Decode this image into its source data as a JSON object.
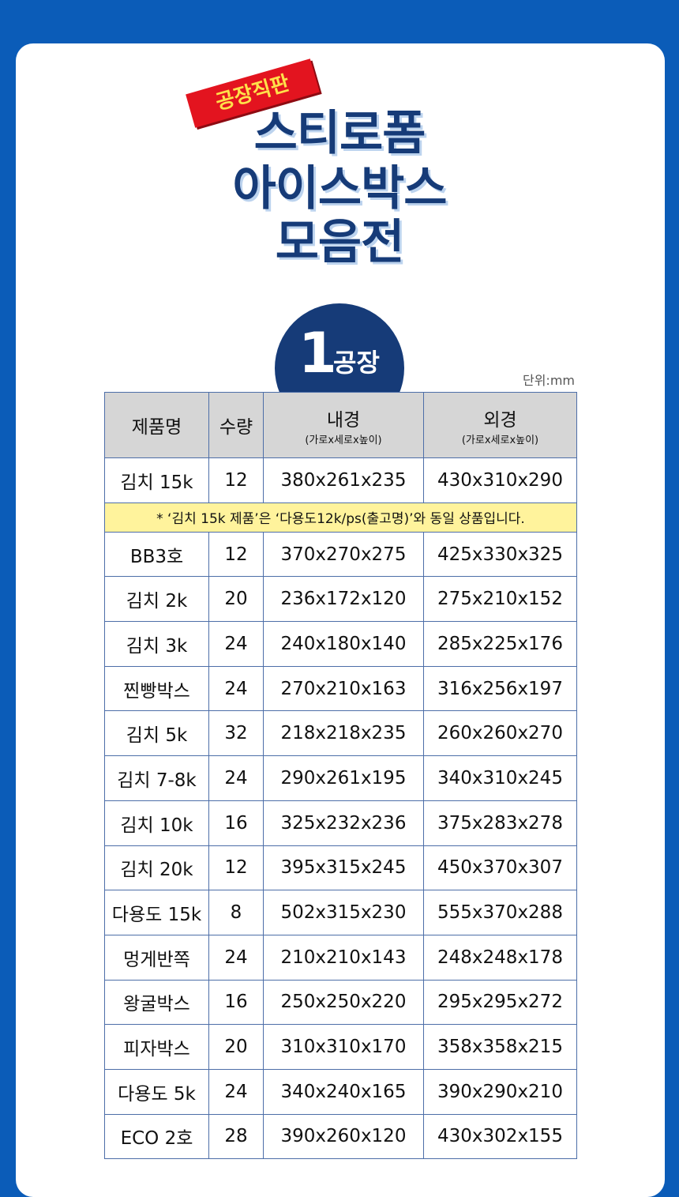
{
  "header": {
    "badge": "공장직판",
    "title": [
      "스티로폼",
      "아이스박스",
      "모음전"
    ]
  },
  "factory": {
    "number": "1",
    "label": "공장"
  },
  "unit": "단위:mm",
  "table": {
    "columns": [
      {
        "label": "제품명"
      },
      {
        "label": "수량"
      },
      {
        "label": "내경",
        "sub": "(가로x세로x높이)"
      },
      {
        "label": "외경",
        "sub": "(가로x세로x높이)"
      }
    ],
    "rows": [
      [
        "김치 15k",
        "12",
        "380x261x235",
        "430x310x290"
      ],
      {
        "note": "* ‘김치 15k 제품’은 ‘다용도12k/ps(출고명)’와 동일 상품입니다."
      },
      [
        "BB3호",
        "12",
        "370x270x275",
        "425x330x325"
      ],
      [
        "김치 2k",
        "20",
        "236x172x120",
        "275x210x152"
      ],
      [
        "김치 3k",
        "24",
        "240x180x140",
        "285x225x176"
      ],
      [
        "찐빵박스",
        "24",
        "270x210x163",
        "316x256x197"
      ],
      [
        "김치 5k",
        "32",
        "218x218x235",
        "260x260x270"
      ],
      [
        "김치 7-8k",
        "24",
        "290x261x195",
        "340x310x245"
      ],
      [
        "김치 10k",
        "16",
        "325x232x236",
        "375x283x278"
      ],
      [
        "김치 20k",
        "12",
        "395x315x245",
        "450x370x307"
      ],
      [
        "다용도 15k",
        "8",
        "502x315x230",
        "555x370x288"
      ],
      [
        "멍게반쪽",
        "24",
        "210x210x143",
        "248x248x178"
      ],
      [
        "왕굴박스",
        "16",
        "250x250x220",
        "295x295x272"
      ],
      [
        "피자박스",
        "20",
        "310x310x170",
        "358x358x215"
      ],
      [
        "다용도 5k",
        "24",
        "340x240x165",
        "390x290x210"
      ],
      [
        "ECO 2호",
        "28",
        "390x260x120",
        "430x302x155"
      ]
    ]
  }
}
